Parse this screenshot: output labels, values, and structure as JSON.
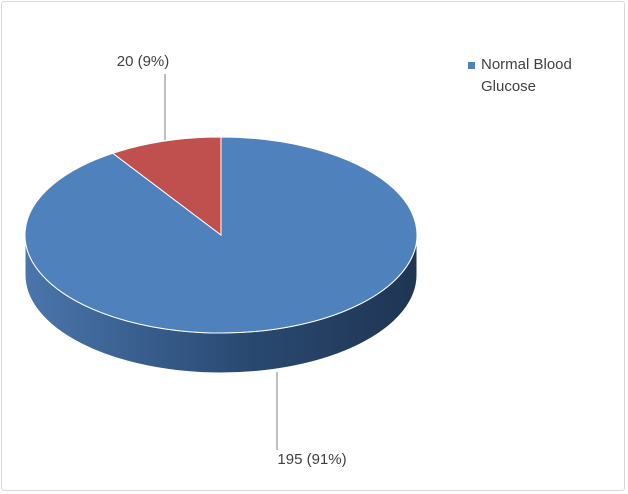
{
  "chart_data": {
    "type": "pie",
    "categories": [
      "Normal Blood Glucose",
      null
    ],
    "values": [
      195,
      20
    ],
    "value_labels": [
      "195 (91%)",
      "20 (9%)"
    ],
    "colors": [
      "#4f81bd",
      "#c0504d"
    ],
    "legend": "right"
  }
}
